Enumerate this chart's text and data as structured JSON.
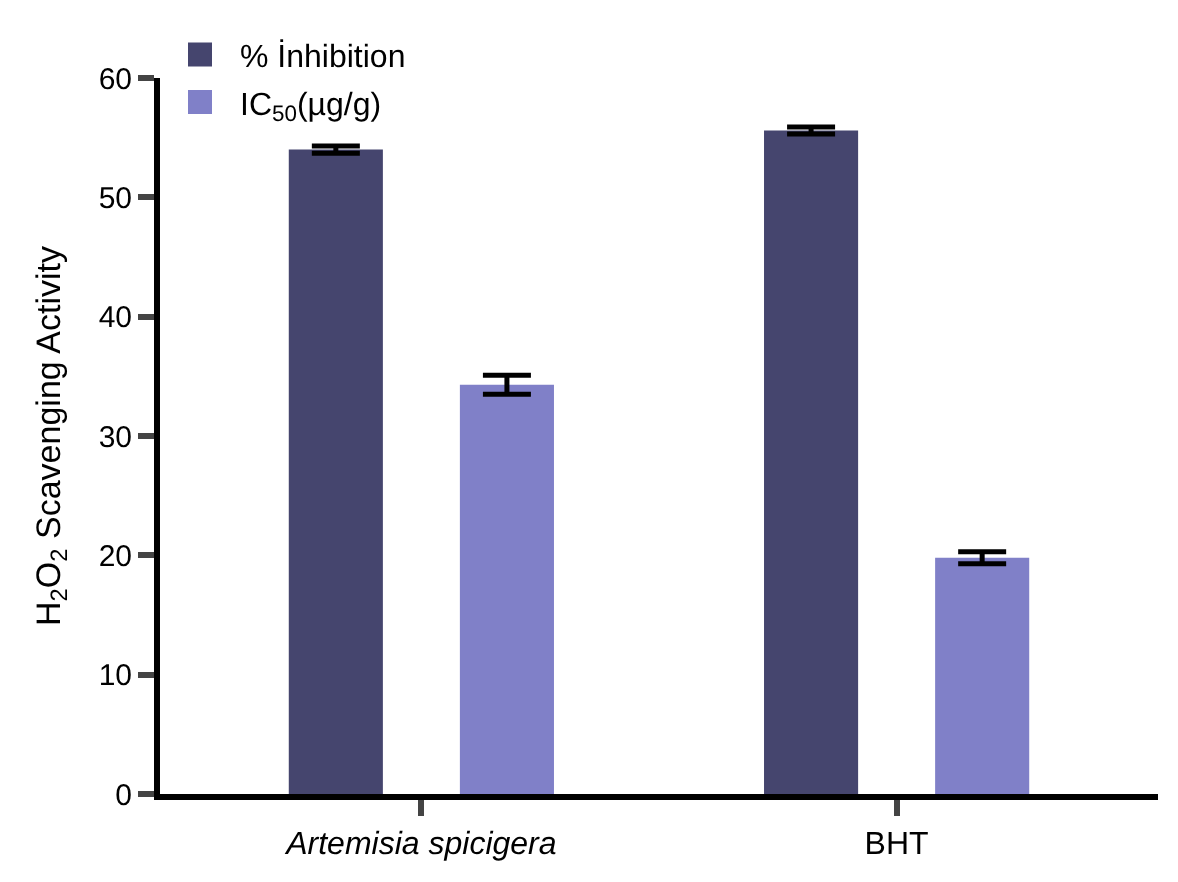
{
  "chart_data": {
    "type": "bar",
    "ylabel": "H$_{2}$O$_{2}$ Scavenging Activity",
    "categories": [
      "Artemisia spicigera",
      "BHT"
    ],
    "series": [
      {
        "name": "% İnhibition",
        "color": "#45456e",
        "values": [
          54.0,
          55.6
        ],
        "errors": [
          0.3,
          0.3
        ]
      },
      {
        "name": "IC$_{50}$(µg/g)",
        "color": "#8080c8",
        "values": [
          34.3,
          19.8
        ],
        "errors": [
          0.8,
          0.5
        ]
      }
    ],
    "ylim": [
      0,
      60
    ],
    "yticks": [
      0,
      10,
      20,
      30,
      40,
      50,
      60
    ],
    "legend": "top left"
  }
}
